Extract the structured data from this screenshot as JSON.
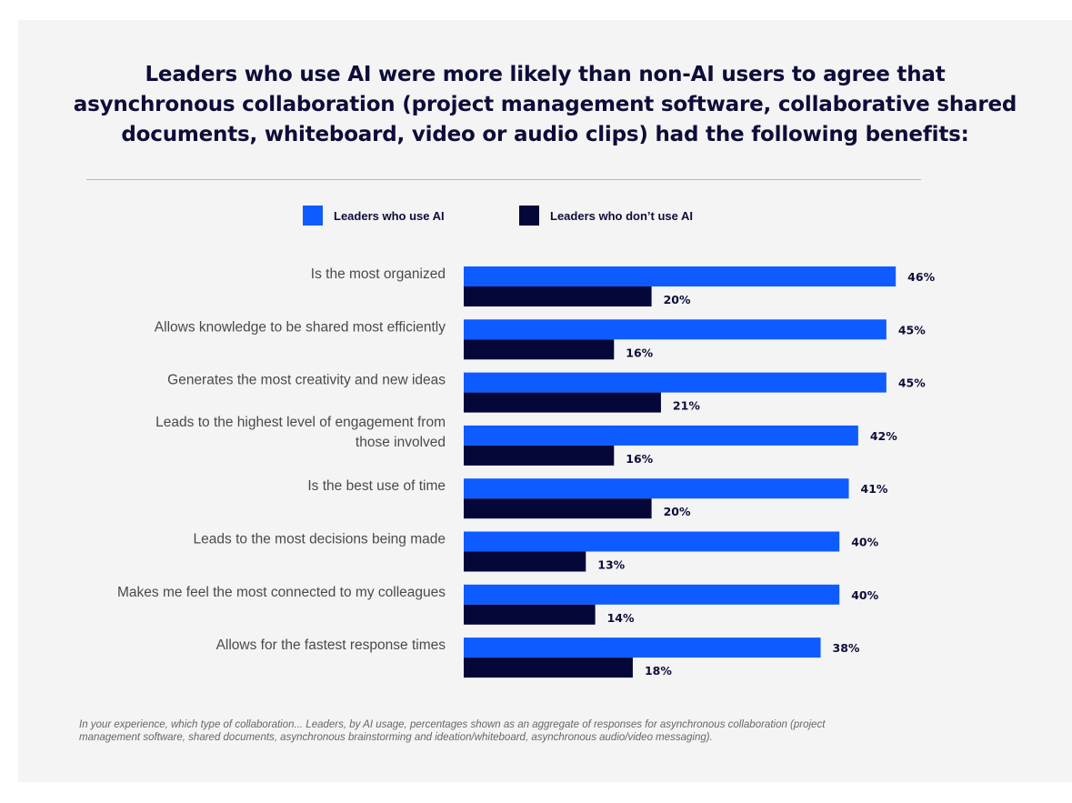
{
  "colors": {
    "ai": "#0e5cff",
    "non_ai": "#050738",
    "panel": "#f4f4f4",
    "title": "#0d0d3a",
    "category_text": "#4a4a4a"
  },
  "chart_data": {
    "type": "bar",
    "orientation": "horizontal",
    "title": [
      "Leaders who use AI were more likely than non-AI users to agree that",
      "asynchronous collaboration (project management software, collaborative shared",
      "documents, whiteboard, video or audio clips) had the following benefits:"
    ],
    "legend_position": "top",
    "grid": false,
    "value_suffix": "%",
    "xlim": [
      0,
      50
    ],
    "categories": [
      [
        "Is the most organized"
      ],
      [
        "Allows knowledge to be shared most efficiently"
      ],
      [
        "Generates the most creativity and new ideas"
      ],
      [
        "Leads to the highest level of engagement from",
        "those involved"
      ],
      [
        "Is the best use of time"
      ],
      [
        "Leads to the most decisions being made"
      ],
      [
        "Makes me feel the most connected to my colleagues"
      ],
      [
        "Allows for the fastest response times"
      ]
    ],
    "series": [
      {
        "name": "Leaders who use AI",
        "color": "#0e5cff",
        "values": [
          46,
          45,
          45,
          42,
          41,
          40,
          40,
          38
        ]
      },
      {
        "name": "Leaders who don’t use AI",
        "color": "#050738",
        "values": [
          20,
          16,
          21,
          16,
          20,
          13,
          14,
          18
        ]
      }
    ]
  },
  "footnote": [
    "In your experience, which type of collaboration... Leaders, by AI usage, percentages shown as an aggregate of responses for asynchronous collaboration (project",
    "management software, shared documents, asynchronous brainstorming and ideation/whiteboard, asynchronous audio/video messaging)."
  ]
}
